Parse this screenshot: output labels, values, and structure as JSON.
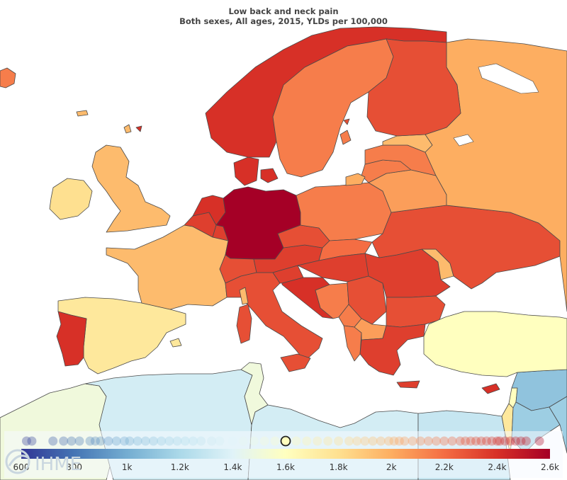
{
  "title": "Low back and neck pain",
  "subtitle": "Both sexes, All ages, 2015, YLDs per 100,000",
  "logo_text": "IHME",
  "colors": {
    "scale": [
      "#313695",
      "#4575b4",
      "#74add1",
      "#abd9e9",
      "#e0f3f8",
      "#ffffbf",
      "#fee090",
      "#fdae61",
      "#f46d43",
      "#d73027",
      "#a50026"
    ],
    "no_data": "#ffffff",
    "border": "#4a4a4a"
  },
  "scale": {
    "min": 600,
    "max": 2600,
    "ticks": [
      {
        "value": 600,
        "label": "600"
      },
      {
        "value": 800,
        "label": "800"
      },
      {
        "value": 1000,
        "label": "1k"
      },
      {
        "value": 1200,
        "label": "1.2k"
      },
      {
        "value": 1400,
        "label": "1.4k"
      },
      {
        "value": 1600,
        "label": "1.6k"
      },
      {
        "value": 1800,
        "label": "1.8k"
      },
      {
        "value": 2000,
        "label": "2k"
      },
      {
        "value": 2200,
        "label": "2.2k"
      },
      {
        "value": 2400,
        "label": "2.4k"
      },
      {
        "value": 2600,
        "label": "2.6k"
      }
    ]
  },
  "selected_value": 1600,
  "distribution": [
    620,
    640,
    720,
    760,
    790,
    820,
    860,
    880,
    900,
    930,
    960,
    990,
    1010,
    1040,
    1070,
    1100,
    1130,
    1160,
    1190,
    1220,
    1250,
    1280,
    1320,
    1350,
    1400,
    1440,
    1480,
    1520,
    1560,
    1640,
    1680,
    1720,
    1760,
    1800,
    1840,
    1870,
    1900,
    1930,
    1960,
    1990,
    2010,
    2030,
    2050,
    2080,
    2110,
    2140,
    2170,
    2200,
    2230,
    2260,
    2280,
    2300,
    2320,
    2340,
    2360,
    2380,
    2400,
    2410,
    2430,
    2450,
    2470,
    2490,
    2510,
    2560
  ],
  "regions": [
    {
      "name": "Germany",
      "value": 2600
    },
    {
      "name": "Norway",
      "value": 2400
    },
    {
      "name": "Finland",
      "value": 2300
    },
    {
      "name": "Sweden",
      "value": 2150
    },
    {
      "name": "Russia",
      "value": 2000
    },
    {
      "name": "Estonia",
      "value": 1950
    },
    {
      "name": "Latvia",
      "value": 2150
    },
    {
      "name": "Lithuania",
      "value": 2150
    },
    {
      "name": "Belarus",
      "value": 2050
    },
    {
      "name": "Ukraine",
      "value": 2300
    },
    {
      "name": "Poland",
      "value": 2150
    },
    {
      "name": "Denmark",
      "value": 2400
    },
    {
      "name": "Netherlands",
      "value": 2400
    },
    {
      "name": "Belgium",
      "value": 2350
    },
    {
      "name": "Luxembourg",
      "value": 2350
    },
    {
      "name": "France",
      "value": 1950
    },
    {
      "name": "Spain",
      "value": 1750
    },
    {
      "name": "Portugal",
      "value": 2400
    },
    {
      "name": "United Kingdom",
      "value": 1950
    },
    {
      "name": "Ireland",
      "value": 1800
    },
    {
      "name": "Iceland",
      "value": 2150
    },
    {
      "name": "Switzerland",
      "value": 2300
    },
    {
      "name": "Austria",
      "value": 2350
    },
    {
      "name": "Czech Republic",
      "value": 2300
    },
    {
      "name": "Slovakia",
      "value": 2200
    },
    {
      "name": "Hungary",
      "value": 2350
    },
    {
      "name": "Italy",
      "value": 2300
    },
    {
      "name": "Slovenia",
      "value": 2350
    },
    {
      "name": "Croatia",
      "value": 2400
    },
    {
      "name": "Bosnia and Herzegovina",
      "value": 2150
    },
    {
      "name": "Serbia",
      "value": 2300
    },
    {
      "name": "Montenegro",
      "value": 2150
    },
    {
      "name": "Albania",
      "value": 2150
    },
    {
      "name": "Macedonia",
      "value": 2050
    },
    {
      "name": "Romania",
      "value": 2350
    },
    {
      "name": "Moldova",
      "value": 1950
    },
    {
      "name": "Bulgaria",
      "value": 2300
    },
    {
      "name": "Greece",
      "value": 2350
    },
    {
      "name": "Turkey",
      "value": 1600
    },
    {
      "name": "Cyprus",
      "value": 2400
    },
    {
      "name": "Morocco",
      "value": 1500
    },
    {
      "name": "Algeria",
      "value": 1350
    },
    {
      "name": "Tunisia",
      "value": 1500
    },
    {
      "name": "Libya",
      "value": 1350
    },
    {
      "name": "Egypt",
      "value": 1300
    },
    {
      "name": "Syria",
      "value": 1100
    },
    {
      "name": "Lebanon",
      "value": 1600
    },
    {
      "name": "Israel",
      "value": 1750
    },
    {
      "name": "Jordan",
      "value": 1150
    },
    {
      "name": "Iraq",
      "value": 1150
    }
  ]
}
